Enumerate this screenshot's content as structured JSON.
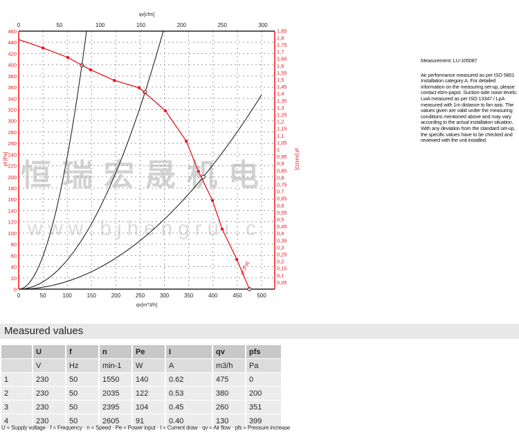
{
  "chart_data": {
    "type": "line",
    "xlabel": "qv[m^3/h]",
    "x2label": "qv[cfm]",
    "ylabel": "pf [Pa]",
    "y2label": "pf [inH2O]",
    "xlim": [
      0,
      530
    ],
    "ylim": [
      0,
      460
    ],
    "x_ticks": [
      0,
      50,
      100,
      150,
      200,
      250,
      300,
      350,
      400,
      450,
      500
    ],
    "x2_ticks": [
      0,
      50,
      100,
      150,
      200,
      250,
      300
    ],
    "y_ticks": [
      0,
      20,
      40,
      60,
      80,
      100,
      120,
      140,
      160,
      180,
      200,
      220,
      240,
      260,
      280,
      300,
      320,
      340,
      360,
      380,
      400,
      420,
      440,
      460
    ],
    "y2_ticks": [
      "0,05",
      "0,1",
      "0,15",
      "0,2",
      "0,25",
      "0,3",
      "0,35",
      "0,4",
      "0,45",
      "0,5",
      "0,55",
      "0,6",
      "0,65",
      "0,7",
      "0,75",
      "0,8",
      "0,85",
      "0,9",
      "0,95",
      "1",
      "1,05",
      "1,1",
      "1,15",
      "1,2",
      "1,25",
      "1,3",
      "1,35",
      "1,4",
      "1,45",
      "1,5",
      "1,55",
      "1,6",
      "1,65",
      "1,7",
      "1,75",
      "1,8",
      "1,85"
    ],
    "grid": true,
    "fan_curve": {
      "color": "#e8141b",
      "curve_label": "pf [Pa]",
      "x": [
        0,
        50,
        101,
        148,
        197,
        248,
        302,
        345,
        370,
        399,
        419,
        449,
        475
      ],
      "y": [
        445,
        430,
        413,
        391,
        372,
        359,
        318,
        264,
        210,
        158,
        107,
        53,
        0
      ]
    },
    "system_curves": {
      "color": "#222222",
      "operating_points": [
        {
          "q": 130,
          "p": 399
        },
        {
          "q": 260,
          "p": 351
        },
        {
          "q": 380,
          "p": 200
        },
        {
          "q": 475,
          "p": 0
        }
      ]
    }
  },
  "watermark": {
    "text": "恒瑞宏晟机电",
    "url": "w w w . b j h e n g r u i . c"
  },
  "note": {
    "title": "Measurement: LU-105087",
    "body": "Air performance measured as per ISO 5801 Installation category A. For detailed information on the measuring set-up, please contact ebm-papst. Suction-side noise levels: LwA measured as per ISO 13347 / LpA measured with 1m distance to fan axis. The values given are valid under the measuring conditions mentioned above and may vary according to the actual installation situation. With any deviation from the standard set-up, the specific values have to be checked and reviewed with the unit installed."
  },
  "table": {
    "title": "Measured values",
    "headers": [
      "",
      "U",
      "f",
      "n",
      "Pe",
      "I",
      "qv",
      "pfs"
    ],
    "units": [
      "",
      "V",
      "Hz",
      "min-1",
      "W",
      "A",
      "m3/h",
      "Pa"
    ],
    "rows": [
      [
        "1",
        "230",
        "50",
        "1550",
        "140",
        "0.62",
        "475",
        "0"
      ],
      [
        "2",
        "230",
        "50",
        "2035",
        "122",
        "0.53",
        "380",
        "200"
      ],
      [
        "3",
        "230",
        "50",
        "2395",
        "104",
        "0.45",
        "260",
        "351"
      ],
      [
        "4",
        "230",
        "50",
        "2605",
        "91",
        "0.40",
        "130",
        "399"
      ]
    ],
    "legend": "U = Supply voltage · f = Frequency · n = Speed · Pe = Power input · I = Current draw · qv = Air flow · pfs = Pressure increase"
  }
}
